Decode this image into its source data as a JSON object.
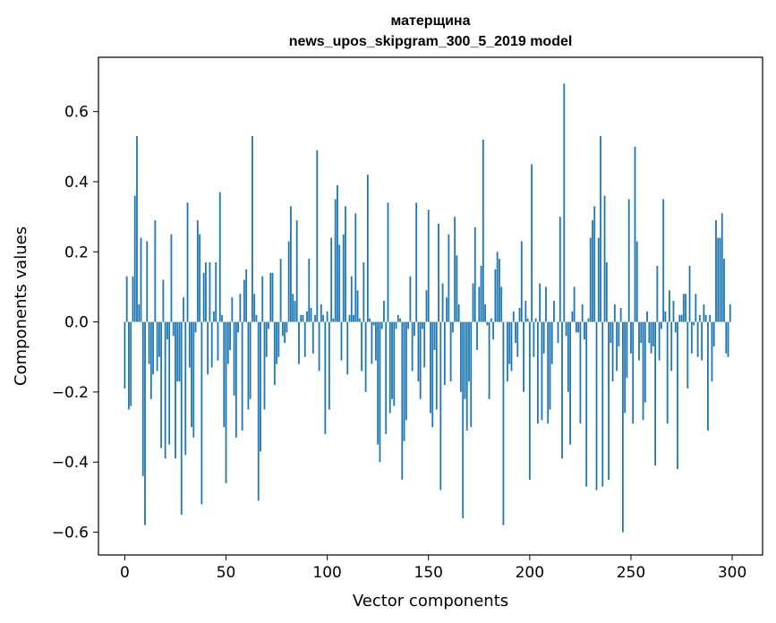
{
  "chart_data": {
    "type": "bar",
    "title_lines": [
      "матерщина",
      "news_upos_skipgram_300_5_2019 model"
    ],
    "xlabel": "Vector components",
    "ylabel": "Components values",
    "xlim": [
      -13,
      315
    ],
    "ylim": [
      -0.665,
      0.755
    ],
    "xticks": [
      0,
      50,
      100,
      150,
      200,
      250,
      300
    ],
    "xtick_labels": [
      "0",
      "50",
      "100",
      "150",
      "200",
      "250",
      "300"
    ],
    "yticks": [
      -0.6,
      -0.4,
      -0.2,
      0.0,
      0.2,
      0.4,
      0.6
    ],
    "ytick_labels": [
      "−0.6",
      "−0.4",
      "−0.2",
      "0.0",
      "0.2",
      "0.4",
      "0.6"
    ],
    "bar_color": "#1f77b4",
    "grid": false,
    "x": [
      0,
      1,
      2,
      3,
      4,
      5,
      6,
      7,
      8,
      9,
      10,
      11,
      12,
      13,
      14,
      15,
      16,
      17,
      18,
      19,
      20,
      21,
      22,
      23,
      24,
      25,
      26,
      27,
      28,
      29,
      30,
      31,
      32,
      33,
      34,
      35,
      36,
      37,
      38,
      39,
      40,
      41,
      42,
      43,
      44,
      45,
      46,
      47,
      48,
      49,
      50,
      51,
      52,
      53,
      54,
      55,
      56,
      57,
      58,
      59,
      60,
      61,
      62,
      63,
      64,
      65,
      66,
      67,
      68,
      69,
      70,
      71,
      72,
      73,
      74,
      75,
      76,
      77,
      78,
      79,
      80,
      81,
      82,
      83,
      84,
      85,
      86,
      87,
      88,
      89,
      90,
      91,
      92,
      93,
      94,
      95,
      96,
      97,
      98,
      99,
      100,
      101,
      102,
      103,
      104,
      105,
      106,
      107,
      108,
      109,
      110,
      111,
      112,
      113,
      114,
      115,
      116,
      117,
      118,
      119,
      120,
      121,
      122,
      123,
      124,
      125,
      126,
      127,
      128,
      129,
      130,
      131,
      132,
      133,
      134,
      135,
      136,
      137,
      138,
      139,
      140,
      141,
      142,
      143,
      144,
      145,
      146,
      147,
      148,
      149,
      150,
      151,
      152,
      153,
      154,
      155,
      156,
      157,
      158,
      159,
      160,
      161,
      162,
      163,
      164,
      165,
      166,
      167,
      168,
      169,
      170,
      171,
      172,
      173,
      174,
      175,
      176,
      177,
      178,
      179,
      180,
      181,
      182,
      183,
      184,
      185,
      186,
      187,
      188,
      189,
      190,
      191,
      192,
      193,
      194,
      195,
      196,
      197,
      198,
      199,
      200,
      201,
      202,
      203,
      204,
      205,
      206,
      207,
      208,
      209,
      210,
      211,
      212,
      213,
      214,
      215,
      216,
      217,
      218,
      219,
      220,
      221,
      222,
      223,
      224,
      225,
      226,
      227,
      228,
      229,
      230,
      231,
      232,
      233,
      234,
      235,
      236,
      237,
      238,
      239,
      240,
      241,
      242,
      243,
      244,
      245,
      246,
      247,
      248,
      249,
      250,
      251,
      252,
      253,
      254,
      255,
      256,
      257,
      258,
      259,
      260,
      261,
      262,
      263,
      264,
      265,
      266,
      267,
      268,
      269,
      270,
      271,
      272,
      273,
      274,
      275,
      276,
      277,
      278,
      279,
      280,
      281,
      282,
      283,
      284,
      285,
      286,
      287,
      288,
      289,
      290,
      291,
      292,
      293,
      294,
      295,
      296,
      297,
      298,
      299
    ],
    "values": [
      -0.19,
      0.13,
      -0.25,
      -0.24,
      0.13,
      0.36,
      0.53,
      0.05,
      0.24,
      -0.44,
      -0.58,
      0.23,
      -0.12,
      -0.22,
      -0.15,
      0.29,
      -0.14,
      -0.1,
      -0.36,
      0.12,
      -0.39,
      -0.05,
      -0.35,
      0.25,
      -0.04,
      -0.39,
      -0.17,
      -0.17,
      -0.55,
      0.07,
      -0.38,
      0.34,
      -0.13,
      -0.3,
      -0.33,
      -0.03,
      0.29,
      0.25,
      -0.52,
      0.14,
      0.17,
      -0.15,
      0.17,
      -0.13,
      0.03,
      0.17,
      -0.11,
      0.37,
      0.02,
      -0.3,
      -0.46,
      -0.12,
      -0.08,
      0.07,
      -0.21,
      -0.33,
      -0.03,
      0.08,
      -0.31,
      0.12,
      0.15,
      -0.25,
      -0.22,
      0.53,
      0.08,
      0.02,
      -0.51,
      -0.37,
      0.13,
      -0.25,
      -0.1,
      -0.02,
      0.14,
      0.14,
      -0.18,
      -0.12,
      -0.1,
      0.18,
      -0.04,
      -0.06,
      -0.03,
      0.23,
      0.33,
      0.08,
      0.06,
      0.29,
      -0.12,
      0.02,
      0.02,
      -0.1,
      0.03,
      0.18,
      0.04,
      -0.09,
      0.02,
      0.49,
      -0.14,
      0.05,
      0.02,
      -0.32,
      0.03,
      -0.25,
      0.24,
      0.01,
      0.35,
      0.39,
      0.22,
      -0.11,
      0.25,
      0.33,
      -0.15,
      0.02,
      0.13,
      0.02,
      0.31,
      0.09,
      0.01,
      -0.14,
      0.17,
      -0.2,
      0.42,
      0.01,
      -0.12,
      -0.01,
      -0.11,
      -0.35,
      -0.4,
      -0.02,
      0.06,
      -0.32,
      0.34,
      -0.26,
      -0.22,
      -0.24,
      -0.02,
      0.02,
      0.01,
      -0.45,
      -0.34,
      -0.28,
      -0.02,
      0.13,
      -0.14,
      -0.04,
      0.34,
      -0.17,
      -0.22,
      -0.02,
      -0.13,
      0.09,
      0.32,
      -0.26,
      -0.3,
      -0.08,
      -0.25,
      0.28,
      -0.48,
      0.11,
      -0.18,
      0.07,
      0.25,
      -0.17,
      -0.03,
      0.3,
      0.19,
      0.05,
      -0.2,
      -0.56,
      -0.22,
      -0.31,
      -0.17,
      -0.3,
      0.11,
      0.27,
      -0.08,
      0.1,
      0.16,
      0.52,
      0.05,
      -0.01,
      -0.22,
      0.01,
      -0.05,
      0.15,
      0.2,
      0.18,
      0.1,
      -0.58,
      0.0,
      -0.17,
      -0.12,
      -0.14,
      0.03,
      -0.06,
      -0.1,
      0.04,
      0.23,
      -0.2,
      0.06,
      0.01,
      -0.45,
      0.45,
      -0.1,
      0.01,
      -0.29,
      0.11,
      -0.28,
      -0.09,
      0.1,
      -0.29,
      -0.25,
      -0.12,
      0.06,
      0.0,
      -0.06,
      0.3,
      -0.39,
      0.68,
      -0.04,
      -0.2,
      -0.35,
      0.03,
      0.1,
      -0.03,
      -0.03,
      -0.29,
      0.05,
      -0.05,
      -0.47,
      0.01,
      0.24,
      0.29,
      0.33,
      -0.48,
      0.24,
      0.53,
      -0.47,
      0.36,
      0.17,
      -0.45,
      -0.06,
      -0.17,
      0.05,
      -0.14,
      -0.07,
      0.04,
      -0.6,
      -0.26,
      -0.16,
      0.35,
      -0.09,
      -0.29,
      0.5,
      0.23,
      -0.11,
      -0.06,
      -0.28,
      -0.23,
      0.03,
      -0.06,
      -0.09,
      -0.07,
      -0.41,
      0.16,
      -0.11,
      -0.02,
      0.35,
      0.03,
      -0.29,
      0.09,
      -0.14,
      0.06,
      -0.03,
      -0.42,
      0.02,
      0.02,
      0.08,
      0.08,
      -0.19,
      0.16,
      -0.09,
      -0.01,
      0.08,
      -0.1,
      0.02,
      -0.11,
      0.05,
      0.02,
      -0.31,
      0.02,
      -0.17,
      -0.07,
      0.29,
      0.24,
      0.24,
      0.31,
      0.18,
      -0.09,
      -0.1,
      0.05
    ]
  }
}
